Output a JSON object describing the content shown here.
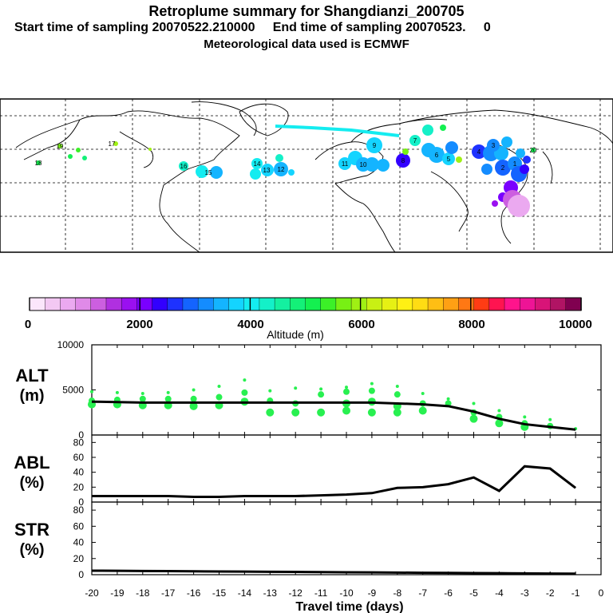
{
  "header": {
    "title": "Retroplume summary for Shangdianzi_200705",
    "line2": "Start time of sampling 20070522.210000     End time of sampling 20070523.     0",
    "line3": "Meteorological data used is ECMWF"
  },
  "colorbar": {
    "label": "Altitude (m)",
    "ticks": [
      "0",
      "2000",
      "4000",
      "6000",
      "8000",
      "10000"
    ],
    "colors": [
      "#fbe6fb",
      "#f3c8f3",
      "#eba9f0",
      "#e08ae8",
      "#cc5fe0",
      "#b030e0",
      "#9a10f0",
      "#7a00ff",
      "#3200ff",
      "#1e32ff",
      "#1464ff",
      "#148cff",
      "#14b4ff",
      "#14d4ff",
      "#14ecf0",
      "#14f0c8",
      "#14f0a0",
      "#14f078",
      "#14f050",
      "#3cf028",
      "#78f014",
      "#a0f014",
      "#c8f014",
      "#e6f014",
      "#fff014",
      "#ffdc14",
      "#ffbe14",
      "#ffa014",
      "#ff7814",
      "#ff3c14",
      "#ff1450",
      "#ff148c",
      "#ee1496",
      "#d81478",
      "#b01464",
      "#800050"
    ]
  },
  "chart_data": [
    {
      "type": "scatter",
      "panel": "ALT",
      "ylabel": "ALT\n(m)",
      "ylim": [
        0,
        10000
      ],
      "yticks": [
        "10000",
        "5000",
        "0"
      ],
      "xlim": [
        -20,
        0
      ],
      "mean_line": {
        "x": [
          -20,
          -19,
          -18,
          -17,
          -16,
          -15,
          -14,
          -13,
          -12,
          -11,
          -10,
          -9,
          -8,
          -7,
          -6,
          -5,
          -4,
          -3,
          -2,
          -1
        ],
        "y": [
          3700,
          3650,
          3600,
          3600,
          3600,
          3600,
          3600,
          3600,
          3600,
          3600,
          3600,
          3600,
          3500,
          3400,
          3200,
          2600,
          1800,
          1200,
          900,
          600
        ]
      },
      "points": [
        {
          "x": -20,
          "y": [
            4800,
            3800,
            3400
          ]
        },
        {
          "x": -19,
          "y": [
            4700,
            3900,
            3400
          ]
        },
        {
          "x": -18,
          "y": [
            4600,
            4000,
            3300
          ]
        },
        {
          "x": -17,
          "y": [
            4700,
            4000,
            3300
          ]
        },
        {
          "x": -16,
          "y": [
            5000,
            4000,
            3200
          ]
        },
        {
          "x": -15,
          "y": [
            5400,
            4200,
            3300
          ]
        },
        {
          "x": -14,
          "y": [
            6100,
            4700,
            3700
          ]
        },
        {
          "x": -13,
          "y": [
            4900,
            3800,
            2500
          ]
        },
        {
          "x": -12,
          "y": [
            5200,
            3500,
            2500
          ]
        },
        {
          "x": -11,
          "y": [
            5100,
            4500,
            2500
          ]
        },
        {
          "x": -10,
          "y": [
            5300,
            4800,
            3500,
            2700
          ]
        },
        {
          "x": -9,
          "y": [
            5700,
            4900,
            3700,
            2500
          ]
        },
        {
          "x": -8,
          "y": [
            5400,
            4500,
            3200,
            2500
          ]
        },
        {
          "x": -7,
          "y": [
            4600,
            3500,
            2700
          ]
        },
        {
          "x": -6,
          "y": [
            4000,
            3500
          ]
        },
        {
          "x": -5,
          "y": [
            3500,
            2500,
            1800
          ]
        },
        {
          "x": -4,
          "y": [
            2700,
            2000,
            1300
          ]
        },
        {
          "x": -3,
          "y": [
            2000,
            1300,
            900
          ]
        },
        {
          "x": -2,
          "y": [
            1700,
            1000
          ]
        },
        {
          "x": -1,
          "y": [
            700
          ]
        }
      ]
    },
    {
      "type": "line",
      "panel": "ABL",
      "ylabel": "ABL\n(%)",
      "ylim": [
        0,
        90
      ],
      "yticks": [
        "80",
        "60",
        "40",
        "20",
        "0"
      ],
      "x": [
        -20,
        -19,
        -18,
        -17,
        -16,
        -15,
        -14,
        -13,
        -12,
        -11,
        -10,
        -9,
        -8,
        -7,
        -6,
        -5,
        -4,
        -3,
        -2,
        -1
      ],
      "y": [
        8,
        8,
        8,
        8,
        7,
        7,
        8,
        8,
        8,
        9,
        10,
        12,
        19,
        20,
        24,
        33,
        15,
        48,
        45,
        19
      ]
    },
    {
      "type": "line",
      "panel": "STR",
      "ylabel": "STR\n(%)",
      "ylim": [
        0,
        90
      ],
      "yticks": [
        "80",
        "60",
        "40",
        "20",
        "0"
      ],
      "x": [
        -20,
        -19,
        -18,
        -17,
        -16,
        -15,
        -14,
        -13,
        -12,
        -11,
        -10,
        -9,
        -8,
        -7,
        -6,
        -5,
        -4,
        -3,
        -2,
        -1
      ],
      "y": [
        5,
        4.8,
        4.6,
        4.4,
        4.2,
        4,
        3.8,
        3.6,
        3.4,
        3.2,
        3,
        2.8,
        2.6,
        2.4,
        2.2,
        2,
        1.8,
        1.6,
        1.4,
        1.2
      ],
      "xlabel": "Travel time (days)",
      "xticks": [
        "-20",
        "-19",
        "-18",
        "-17",
        "-16",
        "-15",
        "-14",
        "-13",
        "-12",
        "-11",
        "-10",
        "-9",
        "-8",
        "-7",
        "-6",
        "-5",
        "-4",
        "-3",
        "-2",
        "-1",
        "0"
      ]
    }
  ],
  "map": {
    "labels": [
      "18",
      "19",
      "17",
      "16",
      "15",
      "14",
      "13",
      "12",
      "11",
      "10",
      "9",
      "8",
      "7",
      "6",
      "5",
      "4",
      "3",
      "2",
      "1",
      "20"
    ]
  }
}
